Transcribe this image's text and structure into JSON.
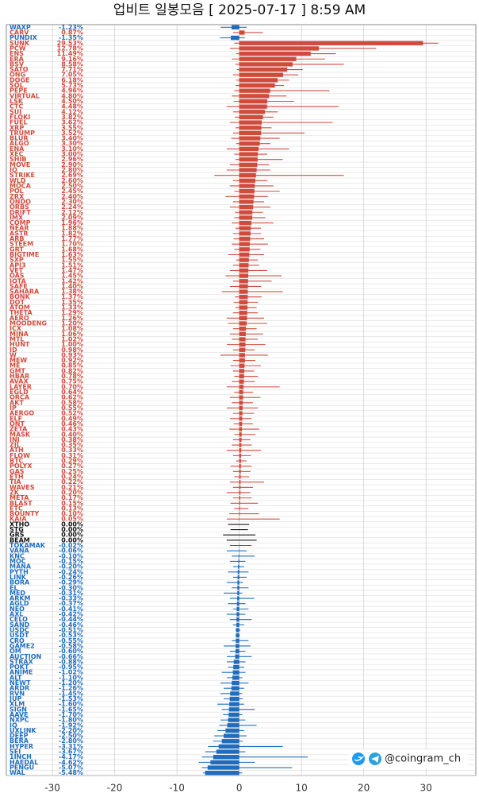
{
  "chart_data": {
    "type": "range-bar",
    "title": "업비트 일봉모음 [ 2025-07-17 ]  8:59 AM",
    "watermark": "@coingram_ch",
    "color_up": "#d14b3d",
    "color_down": "#1f6dbd",
    "color_flat": "#111111",
    "xlim": [
      -37.4,
      38
    ],
    "xticks": [
      -30,
      -20,
      -10,
      0,
      10,
      20,
      30
    ],
    "grid": true,
    "categories": [
      "WAXP",
      "CARV",
      "PUNDIX",
      "SUNK",
      "PCW",
      "ENS",
      "ERA",
      "BSV",
      "SATO",
      "ONG",
      "DOGE",
      "SOL",
      "PEPE",
      "VIRTUAL",
      "LSK",
      "CTC",
      "SUI",
      "FLOKI",
      "FUEL",
      "XRP",
      "TRUMP",
      "BLUR",
      "ALGO",
      "ENA",
      "XEC",
      "SHIB",
      "MOVE",
      "IO",
      "STRIKE",
      "WLD",
      "MOCA",
      "POL",
      "ZRX",
      "ONDO",
      "ORBS",
      "DRIFT",
      "IMX",
      "COMP",
      "NEAR",
      "ASTR",
      "ARB",
      "STEEM",
      "GRT",
      "BIGTIME",
      "SXP",
      "API3",
      "VET",
      "OAS",
      "IOTA",
      "SAFE",
      "SAHARA",
      "BONK",
      "DOT",
      "ATOM",
      "THETA",
      "AERO",
      "MOODENG",
      "ICX",
      "MINA",
      "MTL",
      "HUNT",
      "ID",
      "W",
      "MEW",
      "ME",
      "GMT",
      "HBAR",
      "AVAX",
      "LAYER",
      "EGLD",
      "ORCA",
      "AKT",
      "IP",
      "AERGO",
      "ELF",
      "ONT",
      "ZETA",
      "MASK",
      "INJ",
      "ZIL",
      "ATH",
      "FLOW",
      "BTC",
      "POLYX",
      "GAS",
      "ETH",
      "TIA",
      "WAVES",
      "ZK",
      "META",
      "BLAST",
      "ETC",
      "BOUNTY",
      "KAIA",
      "XTHO",
      "STG",
      "GRS",
      "BEAM",
      "TOKAMAK",
      "VANA",
      "KNC",
      "MOC",
      "MANA",
      "PYTH",
      "LINK",
      "BORA",
      "EL",
      "MED",
      "ARKM",
      "AGLD",
      "NEO",
      "AXL",
      "CELO",
      "SAND",
      "USDC",
      "USDT",
      "CRO",
      "GAME2",
      "OM",
      "AUCTION",
      "STRAX",
      "POKT",
      "ANIME",
      "ALT",
      "NEWT",
      "ARDR",
      "RVN",
      "JUP",
      "XLM",
      "SIGN",
      "AAVE",
      "NXPC",
      "IQ",
      "UXLINK",
      "DEEP",
      "BERA",
      "HYPER",
      "SEI",
      "1INCH",
      "HAEDAL",
      "PENGU",
      "WAL"
    ],
    "values": [
      -1.23,
      0.87,
      -1.35,
      29.53,
      12.78,
      11.49,
      9.16,
      8.58,
      7.71,
      7.05,
      6.18,
      5.73,
      4.96,
      4.8,
      4.5,
      4.48,
      4.12,
      3.82,
      3.62,
      3.55,
      3.52,
      3.4,
      3.3,
      3.1,
      3,
      2.96,
      2.9,
      2.8,
      2.69,
      2.6,
      2.5,
      2.45,
      2.4,
      2.3,
      2.24,
      2.12,
      2.09,
      1.96,
      1.88,
      1.82,
      1.77,
      1.7,
      1.68,
      1.63,
      1.55,
      1.51,
      1.47,
      1.45,
      1.42,
      1.4,
      1.38,
      1.37,
      1.35,
      1.33,
      1.29,
      1.26,
      1.2,
      1.08,
      1.06,
      1.02,
      1,
      0.98,
      0.93,
      0.92,
      0.85,
      0.82,
      0.78,
      0.75,
      0.7,
      0.64,
      0.62,
      0.58,
      0.55,
      0.52,
      0.49,
      0.46,
      0.43,
      0.4,
      0.38,
      0.35,
      0.33,
      0.31,
      0.29,
      0.27,
      0.25,
      0.24,
      0.22,
      0.21,
      0.2,
      0.17,
      0.15,
      0.13,
      0.1,
      0.05,
      0,
      0,
      0,
      0,
      -0.02,
      -0.06,
      -0.1,
      -0.15,
      -0.2,
      -0.24,
      -0.26,
      -0.29,
      -0.3,
      -0.31,
      -0.33,
      -0.37,
      -0.41,
      -0.42,
      -0.44,
      -0.46,
      -0.51,
      -0.53,
      -0.55,
      -0.58,
      -0.6,
      -0.66,
      -0.88,
      -0.95,
      -1.02,
      -1.1,
      -1.2,
      -1.26,
      -1.45,
      -1.53,
      -1.6,
      -1.65,
      -1.7,
      -1.8,
      -1.92,
      -2.2,
      -2.5,
      -2.8,
      -3.31,
      -3.67,
      -4.17,
      -4.62,
      -5.07,
      -5.48
    ],
    "value_labels": [
      "-1.23%",
      "0.87%",
      "-1.35%",
      "29.53%",
      "12.78%",
      "11.49%",
      "9.16%",
      "8.58%",
      "7.71%",
      "7.05%",
      "6.18%",
      "5.73%",
      "4.96%",
      "4.80%",
      "4.50%",
      "4.48%",
      "4.12%",
      "3.82%",
      "3.62%",
      "3.55%",
      "3.52%",
      "3.40%",
      "3.30%",
      "3.10%",
      "3.00%",
      "2.96%",
      "2.90%",
      "2.80%",
      "2.69%",
      "2.60%",
      "2.50%",
      "2.45%",
      "2.40%",
      "2.30%",
      "2.24%",
      "2.12%",
      "2.09%",
      "1.96%",
      "1.88%",
      "1.82%",
      "1.77%",
      "1.70%",
      "1.68%",
      "1.63%",
      "1.55%",
      "1.51%",
      "1.47%",
      "1.45%",
      "1.42%",
      "1.40%",
      "1.38%",
      "1.37%",
      "1.35%",
      "1.33%",
      "1.29%",
      "1.26%",
      "1.20%",
      "1.08%",
      "1.06%",
      "1.02%",
      "1.00%",
      "0.98%",
      "0.93%",
      "0.92%",
      "0.85%",
      "0.82%",
      "0.78%",
      "0.75%",
      "0.70%",
      "0.64%",
      "0.62%",
      "0.58%",
      "0.55%",
      "0.52%",
      "0.49%",
      "0.46%",
      "0.43%",
      "0.40%",
      "0.38%",
      "0.35%",
      "0.33%",
      "0.31%",
      "0.29%",
      "0.27%",
      "0.25%",
      "0.24%",
      "0.22%",
      "0.21%",
      "0.20%",
      "0.17%",
      "0.15%",
      "0.13%",
      "0.10%",
      "0.05%",
      "0.00%",
      "0.00%",
      "0.00%",
      "0.00%",
      "-0.02%",
      "-0.06%",
      "-0.10%",
      "-0.15%",
      "-0.20%",
      "-0.24%",
      "-0.26%",
      "-0.29%",
      "-0.30%",
      "-0.31%",
      "-0.33%",
      "-0.37%",
      "-0.41%",
      "-0.42%",
      "-0.44%",
      "-0.46%",
      "-0.51%",
      "-0.53%",
      "-0.55%",
      "-0.58%",
      "-0.60%",
      "-0.66%",
      "-0.88%",
      "-0.95%",
      "-1.02%",
      "-1.10%",
      "-1.20%",
      "-1.26%",
      "-1.45%",
      "-1.53%",
      "-1.60%",
      "-1.65%",
      "-1.70%",
      "-1.80%",
      "-1.92%",
      "-2.20%",
      "-2.50%",
      "-2.80%",
      "-3.31%",
      "-3.67%",
      "-4.17%",
      "-4.62%",
      "-5.07%",
      "-5.48%"
    ],
    "low": [
      -3,
      -1,
      -3.1,
      -0.8,
      -1.5,
      -0.5,
      -1.2,
      -0.6,
      -0.4,
      -1,
      -0.5,
      -0.6,
      -0.8,
      -1.2,
      -0.9,
      -2,
      -1,
      -0.7,
      -1.5,
      -0.6,
      -1,
      -1.3,
      -0.5,
      -2,
      -0.8,
      -0.6,
      -1.5,
      -2,
      -4,
      -1,
      -1.5,
      -0.8,
      -2.2,
      -1,
      -1.5,
      -0.7,
      -0.8,
      -1.2,
      -0.6,
      -1,
      -0.9,
      -1.2,
      -0.8,
      -1.8,
      -0.5,
      -1,
      -1.5,
      -2.2,
      -1,
      -1.5,
      -2.8,
      -0.7,
      -0.9,
      -0.6,
      -1,
      -2,
      -1.8,
      -1,
      -1.5,
      -1.2,
      -2,
      -1,
      -3,
      -1,
      -1.4,
      -1,
      -0.8,
      -1.2,
      -2,
      -0.8,
      -1.5,
      -1.2,
      -2,
      -1,
      -1.5,
      -0.9,
      -1.6,
      -0.8,
      -1,
      -1.2,
      -2,
      -1,
      -0.5,
      -1.4,
      -1,
      -0.8,
      -1.5,
      -1,
      -2,
      -1,
      -1.4,
      -0.8,
      -1.6,
      -2,
      -1.8,
      -1.4,
      -2.6,
      -2,
      -1.5,
      -2,
      -1.2,
      -1.5,
      -1,
      -1.8,
      -1,
      -2,
      -1.2,
      -2.5,
      -1.5,
      -1.8,
      -1,
      -2,
      -1.5,
      -1,
      -0.6,
      -0.6,
      -1.2,
      -2.5,
      -1.5,
      -2,
      -2,
      -1.8,
      -2.8,
      -2,
      -3,
      -2.5,
      -3,
      -2.5,
      -3.5,
      -2.8,
      -2.6,
      -3,
      -3.2,
      -3.5,
      -4,
      -4.2,
      -5,
      -5.5,
      -6,
      -6.5,
      -6,
      -5.8
    ],
    "high": [
      1.2,
      3.8,
      0.9,
      32,
      22,
      15.5,
      13.8,
      16.8,
      10.2,
      9.5,
      8,
      7.2,
      14.5,
      7.6,
      8.8,
      16,
      6.2,
      5.5,
      15,
      5.2,
      10.5,
      6.5,
      5,
      8,
      4.5,
      7,
      4.8,
      5,
      16.8,
      4.5,
      5.5,
      6.5,
      4.6,
      4,
      5,
      3.8,
      4.2,
      5.5,
      3.5,
      3.5,
      4,
      4.6,
      3.4,
      4,
      3,
      3.2,
      4.5,
      6.8,
      5.2,
      3.5,
      7,
      3.6,
      3,
      2.8,
      3,
      4,
      4.5,
      2.8,
      3.8,
      3,
      4.2,
      2.5,
      4.6,
      2.6,
      3.5,
      2.4,
      3,
      2.5,
      6.5,
      2.2,
      3.4,
      2.2,
      3,
      2.4,
      2,
      2.2,
      3.2,
      2.6,
      1.8,
      2,
      3.5,
      1.9,
      1.2,
      2,
      1.8,
      1.6,
      4,
      2.2,
      1.8,
      2,
      3,
      1.5,
      3.2,
      6.5,
      1.6,
      1.4,
      2.6,
      2.8,
      2,
      1.2,
      2.5,
      1,
      0.8,
      1.5,
      1.2,
      0.6,
      1.5,
      0.5,
      2.4,
      1,
      1.5,
      1,
      2,
      0.8,
      0.2,
      0.1,
      1.5,
      1.8,
      1,
      2,
      1,
      0.8,
      1,
      0.5,
      1.5,
      0.8,
      0.5,
      0.6,
      0.8,
      2.5,
      0.5,
      1,
      2.8,
      0.8,
      1.2,
      0.6,
      7,
      1,
      11,
      2.5,
      8.5,
      0.5
    ]
  }
}
